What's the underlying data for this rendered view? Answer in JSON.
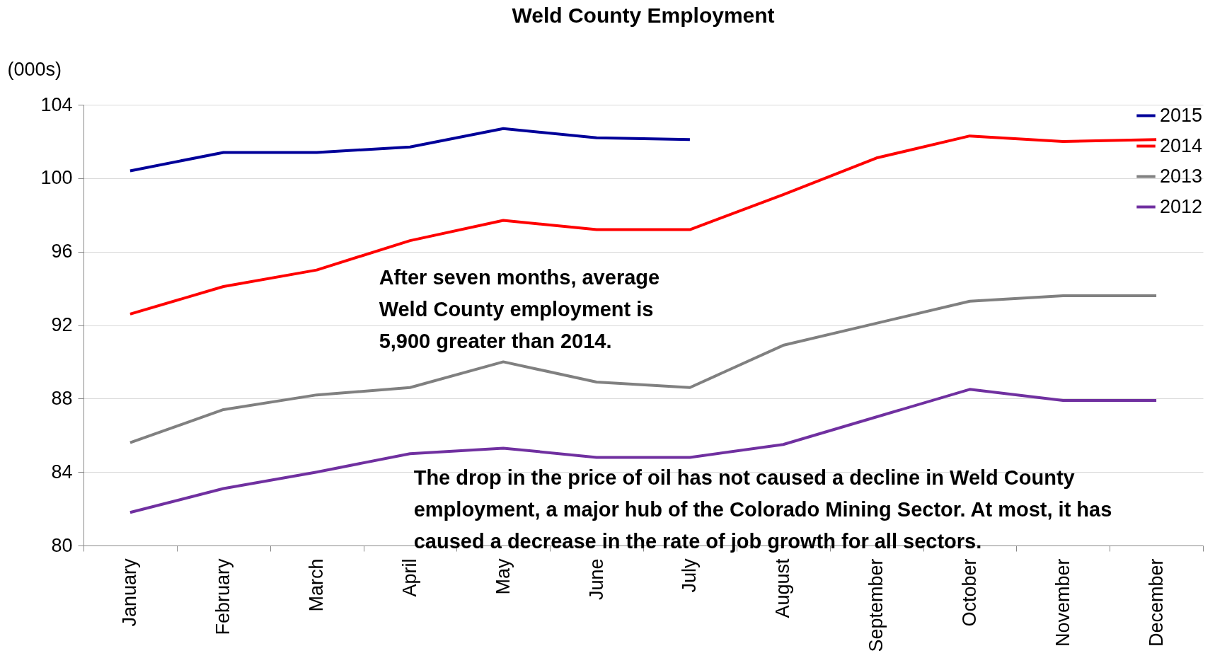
{
  "chart_data": {
    "type": "line",
    "title": "Weld County Employment",
    "ylabel": "(000s)",
    "categories": [
      "January",
      "February",
      "March",
      "April",
      "May",
      "June",
      "July",
      "August",
      "September",
      "October",
      "November",
      "December"
    ],
    "series": [
      {
        "name": "2015",
        "color": "#000099",
        "values": [
          100.4,
          101.4,
          101.4,
          101.7,
          102.7,
          102.2,
          102.1,
          null,
          null,
          null,
          null,
          null
        ]
      },
      {
        "name": "2014",
        "color": "#ff0000",
        "values": [
          92.6,
          94.1,
          95.0,
          96.6,
          97.7,
          97.2,
          97.2,
          99.1,
          101.1,
          102.3,
          102.0,
          102.1
        ]
      },
      {
        "name": "2013",
        "color": "#808080",
        "values": [
          85.6,
          87.4,
          88.2,
          88.6,
          90.0,
          88.9,
          88.6,
          90.9,
          92.1,
          93.3,
          93.6,
          93.6
        ]
      },
      {
        "name": "2012",
        "color": "#7030a0",
        "values": [
          81.8,
          83.1,
          84.0,
          85.0,
          85.3,
          84.8,
          84.8,
          85.5,
          87.0,
          88.5,
          87.9,
          87.9
        ]
      }
    ],
    "ylim": [
      80,
      104
    ],
    "yticks": [
      80,
      84,
      88,
      92,
      96,
      100,
      104
    ],
    "grid": "y",
    "legend": "top right",
    "marker": "none",
    "line_style": "solid",
    "annotations": [
      {
        "text": "After seven months, average Weld County employment is 5,900 greater than 2014."
      },
      {
        "text": "The drop in the price of oil has not caused a decline in Weld County employment, a major hub of the Colorado Mining Sector.  At most, it has caused a decrease in the rate of job growth for all sectors."
      }
    ]
  }
}
